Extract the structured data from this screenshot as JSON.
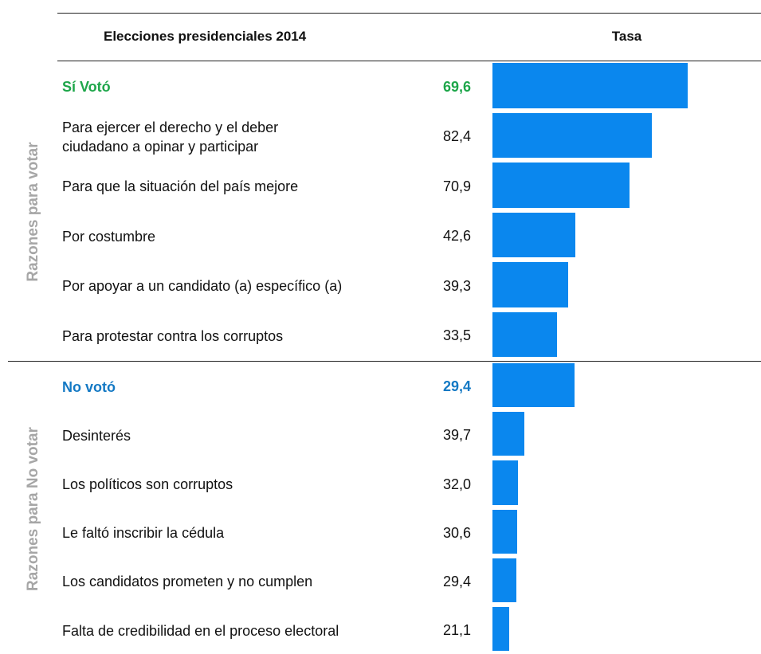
{
  "header": {
    "title": "Elecciones presidenciales 2014",
    "rate": "Tasa"
  },
  "bar_color": "#0a87ee",
  "sections": [
    {
      "label": "Razones para votar",
      "total": {
        "name": "Sí Votó",
        "value": 69.6,
        "value_label": "69,6",
        "color": "#1ea64a"
      },
      "rows": [
        {
          "name": "Para ejercer el derecho y el deber\nciudadano a opinar y participar",
          "value": 82.4,
          "value_label": "82,4"
        },
        {
          "name": "Para que la situación del país mejore",
          "value": 70.9,
          "value_label": "70,9"
        },
        {
          "name": "Por costumbre",
          "value": 42.6,
          "value_label": "42,6"
        },
        {
          "name": "Por apoyar a un candidato (a) específico (a)",
          "value": 39.3,
          "value_label": "39,3"
        },
        {
          "name": "Para protestar contra los corruptos",
          "value": 33.5,
          "value_label": "33,5"
        }
      ]
    },
    {
      "label": "Razones para No votar",
      "total": {
        "name": "No votó",
        "value": 29.4,
        "value_label": "29,4",
        "color": "#1479c4"
      },
      "rows": [
        {
          "name": "Desinterés",
          "value": 39.7,
          "value_label": "39,7"
        },
        {
          "name": "Los políticos son corruptos",
          "value": 32.0,
          "value_label": "32,0"
        },
        {
          "name": "Le faltó inscribir la cédula",
          "value": 30.6,
          "value_label": "30,6"
        },
        {
          "name": "Los candidatos prometen y no cumplen",
          "value": 29.4,
          "value_label": "29,4"
        },
        {
          "name": "Falta de credibilidad en el proceso electoral",
          "value": 21.1,
          "value_label": "21,1"
        }
      ]
    }
  ]
}
